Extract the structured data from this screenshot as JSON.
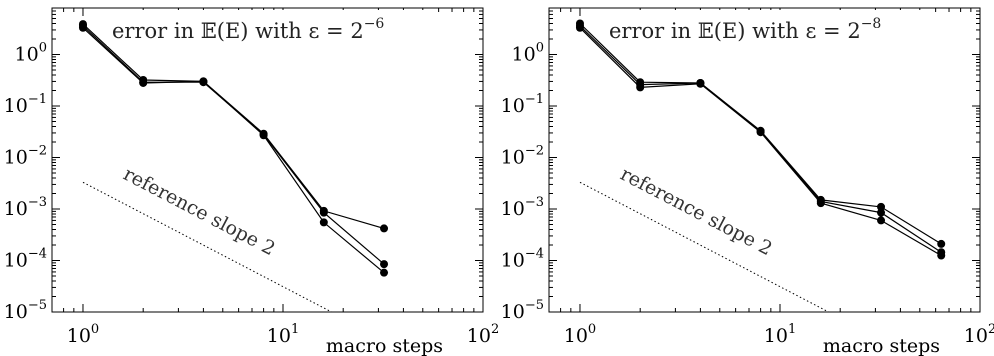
{
  "chart_data": [
    {
      "type": "line",
      "title_main": "error in 𝔼(E) with ε = 2",
      "title_exp": "−6",
      "xlabel": "macro steps",
      "xscale": "log",
      "yscale": "log",
      "xlim": [
        0.7,
        100
      ],
      "ylim": [
        1e-05,
        8
      ],
      "x_ticks": [
        {
          "base": "10",
          "exp": "0",
          "value": 1
        },
        {
          "base": "10",
          "exp": "1",
          "value": 10
        },
        {
          "base": "10",
          "exp": "2",
          "value": 100
        }
      ],
      "y_ticks": [
        {
          "base": "10",
          "exp": "0",
          "value": 1
        },
        {
          "base": "10",
          "exp": "−1",
          "value": 0.1
        },
        {
          "base": "10",
          "exp": "−2",
          "value": 0.01
        },
        {
          "base": "10",
          "exp": "−3",
          "value": 0.001
        },
        {
          "base": "10",
          "exp": "−4",
          "value": 0.0001
        },
        {
          "base": "10",
          "exp": "−5",
          "value": 1e-05
        }
      ],
      "series": [
        {
          "x": [
            1,
            2,
            4,
            8,
            16,
            32
          ],
          "y": [
            3.9,
            0.32,
            0.3,
            0.029,
            0.00092,
            0.00042
          ]
        },
        {
          "x": [
            1,
            2,
            4,
            8,
            16,
            32
          ],
          "y": [
            3.6,
            0.29,
            0.29,
            0.028,
            0.00085,
            8.5e-05
          ]
        },
        {
          "x": [
            1,
            2,
            4,
            8,
            16,
            32
          ],
          "y": [
            3.3,
            0.28,
            0.3,
            0.027,
            0.00055,
            5.8e-05
          ]
        }
      ],
      "reference": {
        "label": "reference slope 2",
        "x": [
          1,
          17.5
        ],
        "y": [
          0.0033,
          1e-05
        ]
      }
    },
    {
      "type": "line",
      "title_main": "error in 𝔼(E) with ε = 2",
      "title_exp": "−8",
      "xlabel": "macro steps",
      "xscale": "log",
      "yscale": "log",
      "xlim": [
        0.7,
        100
      ],
      "ylim": [
        1e-05,
        8
      ],
      "x_ticks": [
        {
          "base": "10",
          "exp": "0",
          "value": 1
        },
        {
          "base": "10",
          "exp": "1",
          "value": 10
        },
        {
          "base": "10",
          "exp": "2",
          "value": 100
        }
      ],
      "y_ticks": [
        {
          "base": "10",
          "exp": "0",
          "value": 1
        },
        {
          "base": "10",
          "exp": "−1",
          "value": 0.1
        },
        {
          "base": "10",
          "exp": "−2",
          "value": 0.01
        },
        {
          "base": "10",
          "exp": "−3",
          "value": 0.001
        },
        {
          "base": "10",
          "exp": "−4",
          "value": 0.0001
        },
        {
          "base": "10",
          "exp": "−5",
          "value": 1e-05
        }
      ],
      "series": [
        {
          "x": [
            1,
            2,
            4,
            8,
            16,
            32,
            64
          ],
          "y": [
            4.0,
            0.29,
            0.28,
            0.033,
            0.0015,
            0.0011,
            0.00021
          ]
        },
        {
          "x": [
            1,
            2,
            4,
            8,
            16,
            32,
            64
          ],
          "y": [
            3.6,
            0.26,
            0.28,
            0.032,
            0.0014,
            0.00085,
            0.000145
          ]
        },
        {
          "x": [
            1,
            2,
            4,
            8,
            16,
            32,
            64
          ],
          "y": [
            3.3,
            0.23,
            0.27,
            0.031,
            0.0013,
            0.0006,
            0.000125
          ]
        }
      ],
      "reference": {
        "label": "reference slope 2",
        "x": [
          1,
          17.5
        ],
        "y": [
          0.0033,
          1e-05
        ]
      }
    }
  ]
}
